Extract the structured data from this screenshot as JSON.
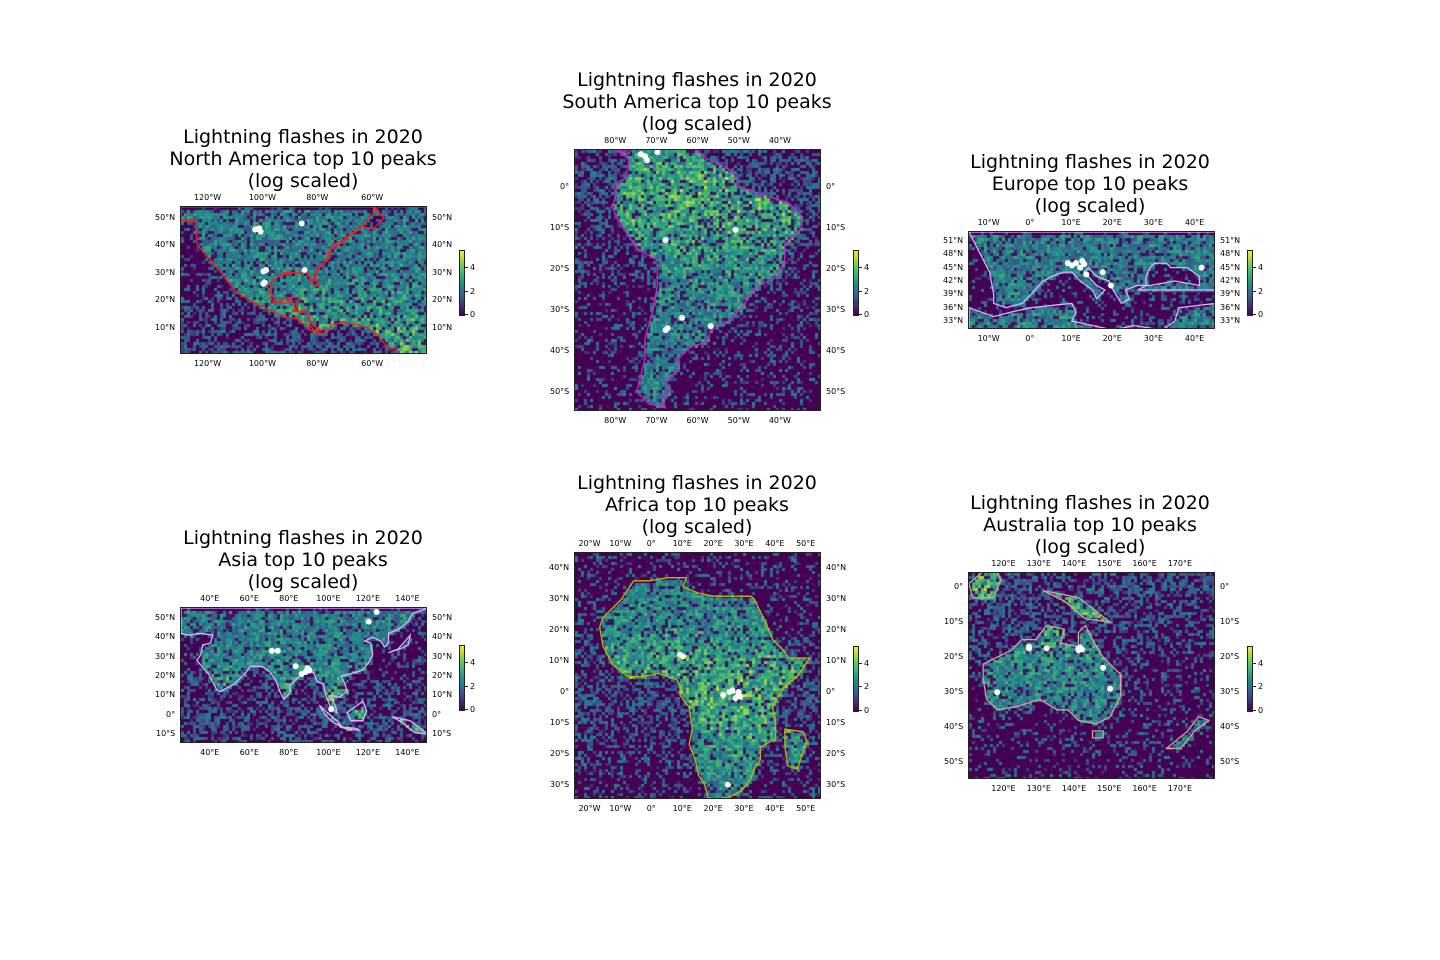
{
  "panels": [
    {
      "id": "north-america",
      "title": "Lightning flashes in 2020\nNorth America top 10 peaks\n(log scaled)",
      "lon_range": [
        -130,
        -40
      ],
      "lat_range": [
        0,
        54
      ],
      "x_ticks": [
        {
          "v": -120,
          "t": "120°W"
        },
        {
          "v": -100,
          "t": "100°W"
        },
        {
          "v": -80,
          "t": "80°W"
        },
        {
          "v": -60,
          "t": "60°W"
        }
      ],
      "y_ticks": [
        {
          "v": 50,
          "t": "50°N"
        },
        {
          "v": 40,
          "t": "40°N"
        },
        {
          "v": 30,
          "t": "30°N"
        },
        {
          "v": 20,
          "t": "20°N"
        },
        {
          "v": 10,
          "t": "10°N"
        }
      ],
      "coast_color": "#ff1a1a",
      "peaks": [
        [
          -102,
          46
        ],
        [
          -103,
          45.8
        ],
        [
          -101.5,
          46.2
        ],
        [
          -86,
          48
        ],
        [
          -99,
          31
        ],
        [
          -100,
          30.5
        ],
        [
          -85,
          31
        ],
        [
          -100,
          26
        ],
        [
          -99.5,
          26.5
        ],
        [
          -101,
          45
        ]
      ],
      "colorbar": {
        "ticks": [
          "0",
          "2",
          "4"
        ],
        "max": 5.5
      }
    },
    {
      "id": "south-america",
      "title": "Lightning flashes in 2020\nSouth America top 10 peaks\n(log scaled)",
      "lon_range": [
        -90,
        -30
      ],
      "lat_range": [
        -55,
        9
      ],
      "x_ticks": [
        {
          "v": -80,
          "t": "80°W"
        },
        {
          "v": -70,
          "t": "70°W"
        },
        {
          "v": -60,
          "t": "60°W"
        },
        {
          "v": -50,
          "t": "50°W"
        },
        {
          "v": -40,
          "t": "40°W"
        }
      ],
      "y_ticks": [
        {
          "v": 0,
          "t": "0°"
        },
        {
          "v": -10,
          "t": "10°S"
        },
        {
          "v": -20,
          "t": "20°S"
        },
        {
          "v": -30,
          "t": "30°S"
        },
        {
          "v": -40,
          "t": "40°S"
        },
        {
          "v": -50,
          "t": "50°S"
        }
      ],
      "coast_color": "#cc22cc",
      "peaks": [
        [
          -74,
          8
        ],
        [
          -73,
          7.5
        ],
        [
          -72.5,
          6.5
        ],
        [
          -70,
          8.5
        ],
        [
          -68,
          -13
        ],
        [
          -51,
          -10.5
        ],
        [
          -64,
          -32
        ],
        [
          -68,
          -35
        ],
        [
          -67.5,
          -34.5
        ],
        [
          -57,
          -34
        ]
      ],
      "colorbar": {
        "ticks": [
          "0",
          "2",
          "4"
        ],
        "max": 5.5
      }
    },
    {
      "id": "europe",
      "title": "Lightning flashes in 2020\nEurope top 10 peaks\n(log scaled)",
      "lon_range": [
        -15,
        45
      ],
      "lat_range": [
        31,
        53
      ],
      "x_ticks": [
        {
          "v": -10,
          "t": "10°W"
        },
        {
          "v": 0,
          "t": "0°"
        },
        {
          "v": 10,
          "t": "10°E"
        },
        {
          "v": 20,
          "t": "20°E"
        },
        {
          "v": 30,
          "t": "30°E"
        },
        {
          "v": 40,
          "t": "40°E"
        }
      ],
      "y_ticks": [
        {
          "v": 51,
          "t": "51°N"
        },
        {
          "v": 48,
          "t": "48°N"
        },
        {
          "v": 45,
          "t": "45°N"
        },
        {
          "v": 42,
          "t": "42°N"
        },
        {
          "v": 39,
          "t": "39°N"
        },
        {
          "v": 36,
          "t": "36°N"
        },
        {
          "v": 33,
          "t": "33°N"
        }
      ],
      "coast_color": "#e0b0ff",
      "peaks": [
        [
          9,
          46
        ],
        [
          10,
          45.5
        ],
        [
          12.5,
          46.5
        ],
        [
          12,
          45
        ],
        [
          13.5,
          43.5
        ],
        [
          17.5,
          44
        ],
        [
          19.5,
          41
        ],
        [
          41.5,
          45
        ],
        [
          11,
          46
        ],
        [
          13,
          45.8
        ]
      ],
      "colorbar": {
        "ticks": [
          "0",
          "2",
          "4"
        ],
        "max": 5.5
      }
    },
    {
      "id": "asia",
      "title": "Lightning flashes in 2020\nAsia top 10 peaks\n(log scaled)",
      "lon_range": [
        25,
        150
      ],
      "lat_range": [
        -15,
        55
      ],
      "x_ticks": [
        {
          "v": 40,
          "t": "40°E"
        },
        {
          "v": 60,
          "t": "60°E"
        },
        {
          "v": 80,
          "t": "80°E"
        },
        {
          "v": 100,
          "t": "100°E"
        },
        {
          "v": 120,
          "t": "120°E"
        },
        {
          "v": 140,
          "t": "140°E"
        }
      ],
      "y_ticks": [
        {
          "v": 50,
          "t": "50°N"
        },
        {
          "v": 40,
          "t": "40°N"
        },
        {
          "v": 30,
          "t": "30°N"
        },
        {
          "v": 20,
          "t": "20°N"
        },
        {
          "v": 10,
          "t": "10°N"
        },
        {
          "v": 0,
          "t": "0°"
        },
        {
          "v": -10,
          "t": "10°S"
        }
      ],
      "coast_color": "#e0b0ff",
      "peaks": [
        [
          71,
          33
        ],
        [
          74,
          33
        ],
        [
          83,
          25
        ],
        [
          86,
          21
        ],
        [
          89,
          24
        ],
        [
          90,
          23
        ],
        [
          101,
          3
        ],
        [
          120,
          48
        ],
        [
          124,
          53
        ],
        [
          88,
          22
        ]
      ],
      "colorbar": {
        "ticks": [
          "0",
          "2",
          "4"
        ],
        "max": 5.5
      }
    },
    {
      "id": "africa",
      "title": "Lightning flashes in 2020\nAfrica top 10 peaks\n(log scaled)",
      "lon_range": [
        -25,
        55
      ],
      "lat_range": [
        -35,
        45
      ],
      "x_ticks": [
        {
          "v": -20,
          "t": "20°W"
        },
        {
          "v": -10,
          "t": "10°W"
        },
        {
          "v": 0,
          "t": "0°"
        },
        {
          "v": 10,
          "t": "10°E"
        },
        {
          "v": 20,
          "t": "20°E"
        },
        {
          "v": 30,
          "t": "30°E"
        },
        {
          "v": 40,
          "t": "40°E"
        },
        {
          "v": 50,
          "t": "50°E"
        }
      ],
      "y_ticks": [
        {
          "v": 40,
          "t": "40°N"
        },
        {
          "v": 30,
          "t": "30°N"
        },
        {
          "v": 20,
          "t": "20°N"
        },
        {
          "v": 10,
          "t": "10°N"
        },
        {
          "v": 0,
          "t": "0°"
        },
        {
          "v": -10,
          "t": "10°S"
        },
        {
          "v": -20,
          "t": "20°S"
        },
        {
          "v": -30,
          "t": "30°S"
        }
      ],
      "coast_color": "#c8b400",
      "peaks": [
        [
          9,
          12
        ],
        [
          10,
          11.5
        ],
        [
          23,
          -1
        ],
        [
          25,
          0
        ],
        [
          27,
          -2
        ],
        [
          28,
          0
        ],
        [
          28.5,
          -1.5
        ],
        [
          26,
          0.5
        ],
        [
          24.5,
          -30
        ],
        [
          28,
          -1
        ]
      ],
      "colorbar": {
        "ticks": [
          "0",
          "2",
          "4"
        ],
        "max": 5.5
      }
    },
    {
      "id": "australia",
      "title": "Lightning flashes in 2020\nAustralia top 10 peaks\n(log scaled)",
      "lon_range": [
        110,
        180
      ],
      "lat_range": [
        -55,
        4
      ],
      "x_ticks": [
        {
          "v": 120,
          "t": "120°E"
        },
        {
          "v": 130,
          "t": "130°E"
        },
        {
          "v": 140,
          "t": "140°E"
        },
        {
          "v": 150,
          "t": "150°E"
        },
        {
          "v": 160,
          "t": "160°E"
        },
        {
          "v": 170,
          "t": "170°E"
        }
      ],
      "y_ticks": [
        {
          "v": 0,
          "t": "0°"
        },
        {
          "v": -10,
          "t": "10°S"
        },
        {
          "v": -20,
          "t": "20°S"
        },
        {
          "v": -30,
          "t": "30°S"
        },
        {
          "v": -40,
          "t": "40°S"
        },
        {
          "v": -50,
          "t": "50°S"
        }
      ],
      "coast_color": "#d8a0a0",
      "peaks": [
        [
          127,
          -17.5
        ],
        [
          132,
          -17.5
        ],
        [
          141,
          -17.5
        ],
        [
          142,
          -17.8
        ],
        [
          141.5,
          -17.2
        ],
        [
          148,
          -23
        ],
        [
          150,
          -29
        ],
        [
          118,
          -30
        ],
        [
          127,
          -17
        ],
        [
          141,
          -18
        ]
      ],
      "colorbar": {
        "ticks": [
          "0",
          "2",
          "4"
        ],
        "max": 5.5
      }
    }
  ]
}
